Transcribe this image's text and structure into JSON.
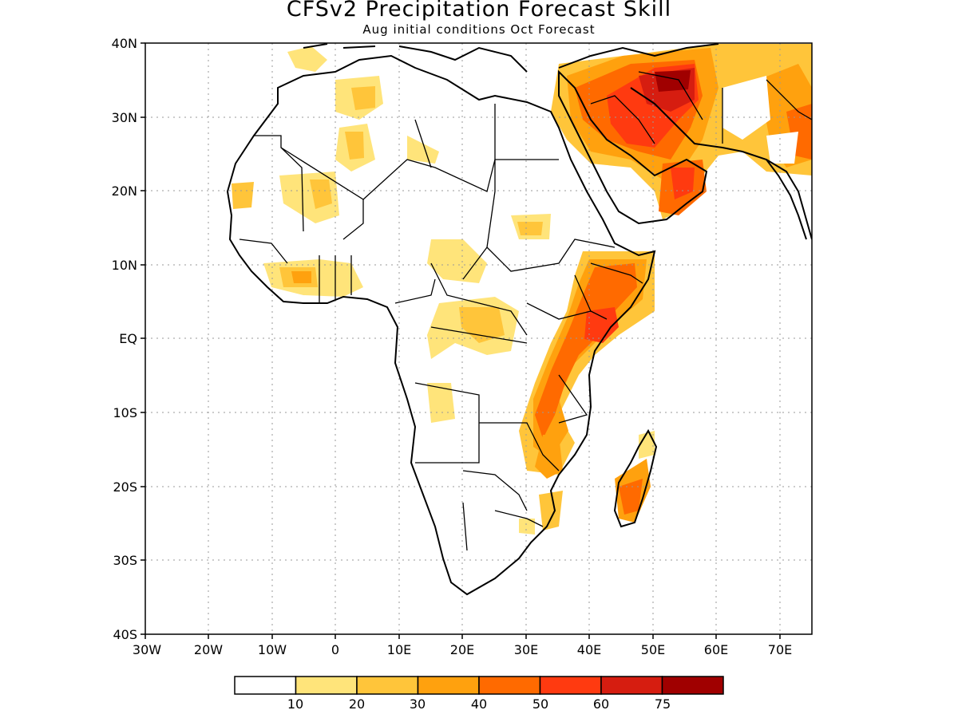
{
  "title": "CFSv2 Precipitation Forecast Skill",
  "subtitle": "Aug initial conditions  Oct Forecast",
  "lat_labels": [
    "40N",
    "30N",
    "20N",
    "10N",
    "EQ",
    "10S",
    "20S",
    "30S",
    "40S"
  ],
  "lon_labels": [
    "30W",
    "20W",
    "10W",
    "0",
    "10E",
    "20E",
    "30E",
    "40E",
    "50E",
    "60E",
    "70E"
  ],
  "colorbar": {
    "colors": [
      "#ffffff",
      "#ffe47a",
      "#ffc53a",
      "#ffa10e",
      "#ff6a00",
      "#ff3a10",
      "#d61d10",
      "#a00000"
    ],
    "labels": [
      "10",
      "20",
      "30",
      "40",
      "50",
      "60",
      "75"
    ]
  },
  "map": {
    "lon_range": [
      -30,
      75
    ],
    "lat_range": [
      -40,
      40
    ],
    "region": "Africa / Middle East"
  }
}
